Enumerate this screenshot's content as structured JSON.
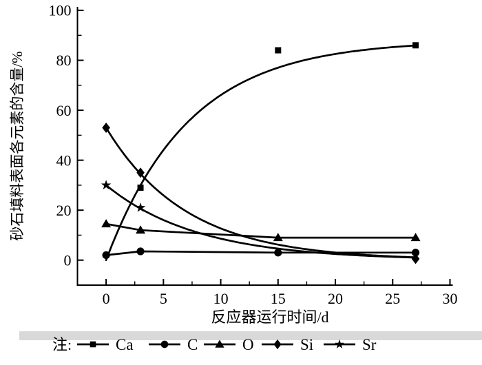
{
  "figure": {
    "legend_note": "注:"
  },
  "chart_data": {
    "type": "scatter",
    "title": "",
    "xlabel": "反应器运行时间/d",
    "ylabel": "砂石填料表面各元素的含量/%",
    "xlim": [
      -2.5,
      30
    ],
    "ylim": [
      -10,
      100
    ],
    "xticks": [
      0,
      5,
      10,
      15,
      20,
      25,
      30
    ],
    "yticks": [
      0,
      20,
      40,
      60,
      80,
      100
    ],
    "x_minor_interval": 2.5,
    "y_minor_interval": 10,
    "grid": false,
    "legend_position": "below-left",
    "axis_color": "#000000",
    "line_color": "#000000",
    "artifact_band_color": "#d9d9d9",
    "series": [
      {
        "name": "Ca",
        "marker": "square",
        "points": [
          [
            3,
            29
          ],
          [
            15,
            84
          ],
          [
            27,
            86
          ]
        ],
        "curve": {
          "kind": "exp_rise",
          "amplitude": 88,
          "tau": 7.2,
          "x_start": 0,
          "x_end": 27
        }
      },
      {
        "name": "C",
        "marker": "circle",
        "points": [
          [
            0,
            2
          ],
          [
            3,
            3.5
          ],
          [
            15,
            3
          ],
          [
            27,
            3
          ]
        ],
        "curve": {
          "kind": "segments"
        }
      },
      {
        "name": "O",
        "marker": "triangle",
        "points": [
          [
            0,
            14.5
          ],
          [
            3,
            12
          ],
          [
            15,
            9
          ],
          [
            27,
            9
          ]
        ],
        "curve": {
          "kind": "segments"
        }
      },
      {
        "name": "Si",
        "marker": "diamond",
        "points": [
          [
            0,
            53
          ],
          [
            3,
            35
          ],
          [
            27,
            0.5
          ]
        ],
        "curve": {
          "kind": "exp_decay",
          "start": 53,
          "tau": 7,
          "x_start": 0,
          "x_end": 27
        }
      },
      {
        "name": "Sr",
        "marker": "star",
        "points": [
          [
            0,
            30
          ],
          [
            3,
            21
          ]
        ],
        "curve": {
          "kind": "exp_decay",
          "start": 30,
          "tau": 8,
          "x_start": 0,
          "x_end": 27
        }
      }
    ]
  }
}
